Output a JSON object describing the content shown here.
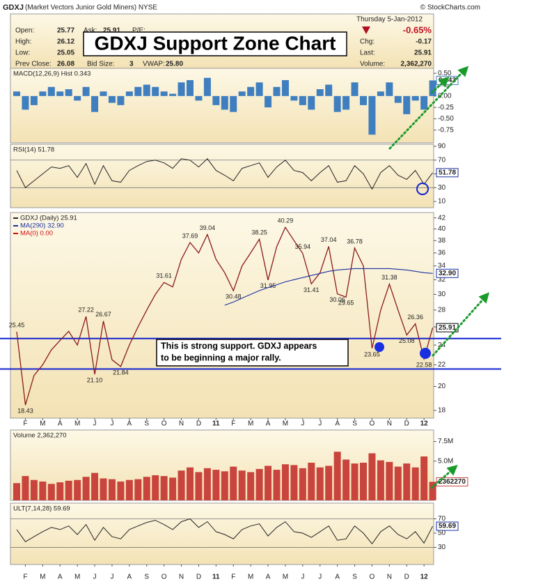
{
  "header": {
    "symbol": "GDXJ",
    "name": "(Market Vectors Junior Gold Miners) NYSE",
    "source": "© StockCharts.com",
    "date": "Thursday  5-Jan-2012",
    "title": "GDXJ Support Zone Chart",
    "left": [
      {
        "label": "Open:",
        "value": "25.77"
      },
      {
        "label": "High:",
        "value": "26.12"
      },
      {
        "label": "Low:",
        "value": "25.05"
      },
      {
        "label": "Prev Close:",
        "value": "26.08"
      }
    ],
    "ask": {
      "label": "Ask:",
      "value": "25.91",
      "extra": "P/E:"
    },
    "bid": {
      "label": "Bid Size:",
      "value": "3"
    },
    "vwap": {
      "label": "VWAP:",
      "value": "25.80"
    },
    "change_pct": "-0.65%",
    "right": [
      {
        "label": "Chg:",
        "value": "-0.17"
      },
      {
        "label": "Last:",
        "value": "25.91"
      },
      {
        "label": "Volume:",
        "value": "2,362,270"
      }
    ],
    "annotation": [
      "This is strong support.  GDXJ appears",
      "to be beginning a major rally."
    ]
  },
  "chart_data": [
    {
      "type": "bar",
      "title": "MACD(12,26,9) Hist 0.343",
      "color": "#3f7fc0",
      "values": [
        0.1,
        -0.3,
        -0.2,
        0.1,
        0.2,
        0.1,
        0.15,
        -0.1,
        0.2,
        -0.35,
        0.1,
        -0.15,
        -0.2,
        0.1,
        0.2,
        0.25,
        0.2,
        0.1,
        0.05,
        0.3,
        0.35,
        -0.1,
        0.4,
        -0.2,
        -0.3,
        -0.35,
        0.1,
        0.2,
        0.3,
        -0.25,
        0.2,
        0.35,
        -0.1,
        -0.2,
        -0.3,
        0.15,
        0.25,
        -0.35,
        -0.3,
        0.3,
        -0.2,
        -0.85,
        0.1,
        0.3,
        -0.15,
        -0.4,
        -0.1,
        -0.3,
        0.343
      ],
      "ylim": [
        -1.03,
        0.61
      ],
      "yticks": [
        {
          "value": 0.5,
          "label": "0.50"
        },
        0.25,
        {
          "value": 0,
          "label": "0.00"
        },
        -0.25,
        {
          "value": -0.5,
          "label": "-0.50"
        },
        -0.75
      ]
    },
    {
      "type": "line",
      "title": "RSI(14) 51.78",
      "color": "#222222",
      "values": [
        55,
        30,
        40,
        50,
        60,
        58,
        62,
        45,
        65,
        35,
        62,
        40,
        38,
        55,
        62,
        68,
        70,
        66,
        58,
        72,
        70,
        60,
        72,
        55,
        48,
        40,
        58,
        62,
        66,
        45,
        60,
        70,
        55,
        52,
        40,
        52,
        62,
        38,
        40,
        62,
        50,
        28,
        52,
        62,
        48,
        42,
        55,
        35,
        51.78
      ],
      "ylim": [
        1,
        93
      ],
      "yticks": [
        90,
        70,
        50,
        30,
        10
      ],
      "bands": [
        70,
        30
      ]
    },
    {
      "type": "price",
      "log_scale": true,
      "support_lines": [
        24.7,
        21.6
      ],
      "categories": [
        null,
        "F",
        null,
        "M",
        null,
        "A",
        null,
        "M",
        null,
        "J",
        null,
        "J",
        null,
        "A",
        null,
        "S",
        null,
        "O",
        null,
        "N",
        null,
        "D",
        null,
        "11",
        null,
        "F",
        null,
        "M",
        null,
        "A",
        null,
        "M",
        null,
        "J",
        null,
        "J",
        null,
        "A",
        null,
        "S",
        null,
        "O",
        null,
        "N",
        null,
        "D",
        null,
        "12",
        null
      ],
      "series": [
        {
          "name": "GDXJ (Daily) 25.91",
          "color": "#222222",
          "values": [
            25.45,
            18.43,
            21,
            22,
            23.5,
            24.5,
            25.5,
            24,
            27.22,
            21.1,
            26.67,
            22.5,
            21.84,
            24,
            26,
            28,
            30,
            31.61,
            31,
            35,
            37.69,
            36,
            39.04,
            35,
            33,
            30.48,
            34,
            36,
            38.25,
            31.95,
            37,
            40.29,
            38,
            35.94,
            31.41,
            33,
            37.04,
            30.06,
            29.65,
            36.78,
            34,
            23.65,
            28,
            31.38,
            28,
            25.08,
            26.36,
            22.58,
            25.91
          ],
          "value_labels": [
            "25.45",
            "18.43",
            null,
            null,
            null,
            null,
            null,
            null,
            "27.22",
            "21.10",
            "26.67",
            null,
            "21.84",
            null,
            null,
            null,
            null,
            "31.61",
            null,
            null,
            "37.69",
            null,
            "39.04",
            null,
            null,
            "30.48",
            null,
            null,
            "38.25",
            "31.95",
            null,
            "40.29",
            null,
            "35.94",
            "31.41",
            null,
            "37.04",
            "30.06",
            "29.65",
            "36.78",
            null,
            "23.65",
            null,
            "31.38",
            null,
            "25.08",
            "26.36",
            "22.58",
            "25.91"
          ]
        },
        {
          "name": "MA(290) 32.90",
          "color": "#1a2fa0",
          "values": [
            null,
            null,
            null,
            null,
            null,
            null,
            null,
            null,
            null,
            null,
            null,
            null,
            null,
            null,
            null,
            null,
            null,
            null,
            null,
            null,
            null,
            null,
            null,
            null,
            28.6,
            29.0,
            29.5,
            30.0,
            30.5,
            30.9,
            31.3,
            31.7,
            32.0,
            32.3,
            32.6,
            32.9,
            33.2,
            33.4,
            33.5,
            33.6,
            33.6,
            33.6,
            33.6,
            33.6,
            33.5,
            33.4,
            33.2,
            33.0,
            32.9
          ],
          "value_labels": [
            null,
            null,
            null,
            null,
            null,
            null,
            null,
            null,
            null,
            null,
            null,
            null,
            null,
            null,
            null,
            null,
            null,
            null,
            null,
            null,
            null,
            null,
            null,
            null,
            null,
            null,
            null,
            null,
            null,
            null,
            null,
            null,
            null,
            null,
            null,
            null,
            null,
            null,
            null,
            null,
            null,
            null,
            null,
            null,
            null,
            null,
            null,
            null,
            "32.90"
          ]
        },
        {
          "name": "MA(0) 0.00",
          "color": "#d01010",
          "values": [
            null,
            null,
            null,
            null,
            null,
            null,
            null,
            null,
            null,
            null,
            null,
            null,
            null,
            null,
            null,
            null,
            null,
            null,
            null,
            null,
            null,
            null,
            null,
            null,
            null,
            null,
            null,
            null,
            null,
            null,
            null,
            null,
            null,
            null,
            null,
            null,
            null,
            null,
            null,
            null,
            null,
            null,
            null,
            null,
            null,
            null,
            null,
            null,
            null
          ]
        }
      ],
      "ylim": [
        17.4,
        43
      ],
      "yticks": [
        18,
        20,
        22,
        24,
        26,
        28,
        30,
        32,
        34,
        36,
        38,
        40,
        42
      ]
    },
    {
      "type": "bar",
      "title": "Volume 2,362,270",
      "color": "#c8443c",
      "values": [
        2200000,
        3100000,
        2600000,
        2400000,
        2100000,
        2300000,
        2500000,
        2600000,
        3000000,
        3500000,
        2800000,
        2700000,
        2400000,
        2600000,
        2700000,
        3000000,
        3200000,
        3100000,
        2900000,
        3800000,
        4200000,
        3600000,
        4100000,
        3900000,
        3700000,
        4300000,
        3800000,
        3600000,
        4000000,
        4400000,
        3900000,
        4600000,
        4500000,
        4100000,
        4800000,
        4200000,
        4400000,
        6200000,
        5200000,
        4700000,
        4800000,
        6000000,
        5100000,
        4900000,
        4300000,
        4700000,
        4200000,
        5600000,
        2362270
      ],
      "ylim": [
        0,
        8970000
      ],
      "yticks": [
        {
          "value": 7500000,
          "label": "7.5M"
        },
        {
          "value": 5000000,
          "label": "5.0M"
        }
      ]
    },
    {
      "type": "line",
      "title": "ULT(7,14,28) 59.69",
      "color": "#222222",
      "categories": [
        null,
        "F",
        null,
        "M",
        null,
        "A",
        null,
        "M",
        null,
        "J",
        null,
        "J",
        null,
        "A",
        null,
        "S",
        null,
        "O",
        null,
        "N",
        null,
        "D",
        null,
        "11",
        null,
        "F",
        null,
        "M",
        null,
        "A",
        null,
        "M",
        null,
        "J",
        null,
        "J",
        null,
        "A",
        null,
        "S",
        null,
        "O",
        null,
        "N",
        null,
        "D",
        null,
        "12",
        null
      ],
      "values": [
        55,
        38,
        45,
        52,
        58,
        55,
        60,
        48,
        62,
        40,
        58,
        45,
        42,
        55,
        60,
        65,
        68,
        62,
        55,
        66,
        70,
        58,
        66,
        52,
        48,
        42,
        55,
        60,
        63,
        46,
        58,
        66,
        52,
        50,
        44,
        52,
        60,
        40,
        42,
        60,
        50,
        35,
        52,
        60,
        48,
        42,
        52,
        36,
        59.69
      ],
      "ylim": [
        6,
        92
      ],
      "yticks": [
        70,
        50,
        30
      ],
      "bands": [
        70,
        30
      ]
    }
  ]
}
